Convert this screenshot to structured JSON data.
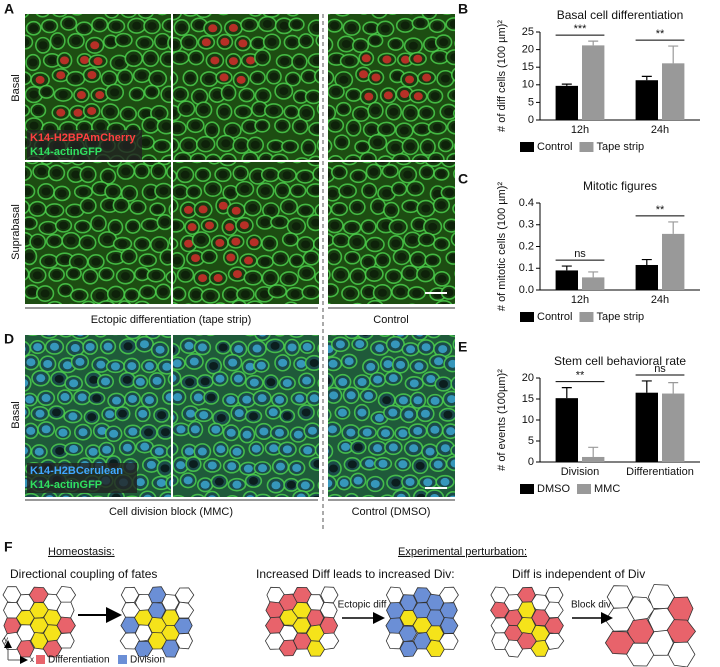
{
  "panels": {
    "letters": [
      "A",
      "B",
      "C",
      "D",
      "E",
      "F"
    ]
  },
  "panel_a": {
    "row_labels": [
      "Basal",
      "Suprabasal"
    ],
    "channels": [
      "K14-H2BPAmCherry",
      "K14-actinGFP"
    ],
    "captions": [
      "Ectopic differentiation (tape strip)",
      "Control"
    ]
  },
  "panel_d": {
    "row_label": "Basal",
    "channels": [
      "K14-H2BCerulean",
      "K14-actinGFP"
    ],
    "captions": [
      "Cell division block (MMC)",
      "Control (DMSO)"
    ]
  },
  "panel_f": {
    "homeostasis": "Homeostasis:",
    "homeostasis_caption": "Directional coupling of fates",
    "perturbation": "Experimental perturbation:",
    "perturbation_captions": [
      "Increased Diff leads to increased Div:",
      "Diff is independent of Div"
    ],
    "arrows": [
      "Ectopic diff",
      "Block div"
    ],
    "legend": [
      "Differentiation",
      "Division"
    ],
    "axes": [
      "y",
      "x"
    ]
  },
  "chart_data": [
    {
      "type": "bar",
      "title": "Basal cell differentiation",
      "y_label": "# of diff cells (100 µm)²",
      "categories": [
        "12h",
        "24h"
      ],
      "series": [
        {
          "name": "Control",
          "color": "#000000",
          "values": [
            9.7,
            11.3
          ],
          "errors": [
            0.5,
            1.1
          ]
        },
        {
          "name": "Tape strip",
          "color": "#999999",
          "values": [
            21.2,
            16.1
          ],
          "errors": [
            1.2,
            4.9
          ]
        }
      ],
      "significance": [
        "***",
        "**"
      ],
      "ylim": [
        0,
        25
      ],
      "yticks": [
        0,
        5,
        10,
        15,
        20,
        25
      ]
    },
    {
      "type": "bar",
      "title": "Mitotic figures",
      "y_label": "# of mitotic cells (100 µm)²",
      "categories": [
        "12h",
        "24h"
      ],
      "series": [
        {
          "name": "Control",
          "color": "#000000",
          "values": [
            0.09,
            0.115
          ],
          "errors": [
            0.02,
            0.025
          ]
        },
        {
          "name": "Tape strip",
          "color": "#999999",
          "values": [
            0.058,
            0.258
          ],
          "errors": [
            0.025,
            0.055
          ]
        }
      ],
      "significance": [
        "ns",
        "**"
      ],
      "ylim": [
        0,
        0.4
      ],
      "yticks": [
        {
          "value": 0,
          "label": "0.0"
        },
        0.1,
        0.2,
        0.3,
        0.4
      ]
    },
    {
      "type": "bar",
      "title": "Stem cell behavioral rate",
      "y_label": "# of events (100µm)²",
      "categories": [
        "Division",
        "Differentiation"
      ],
      "series": [
        {
          "name": "DMSO",
          "color": "#000000",
          "values": [
            15.2,
            16.5
          ],
          "errors": [
            2.5,
            2.8
          ]
        },
        {
          "name": "MMC",
          "color": "#999999",
          "values": [
            1.2,
            16.3
          ],
          "errors": [
            2.3,
            2.6
          ]
        }
      ],
      "significance": [
        "**",
        "ns"
      ],
      "ylim": [
        0,
        20
      ],
      "yticks": [
        0,
        5,
        10,
        15,
        20
      ]
    }
  ]
}
